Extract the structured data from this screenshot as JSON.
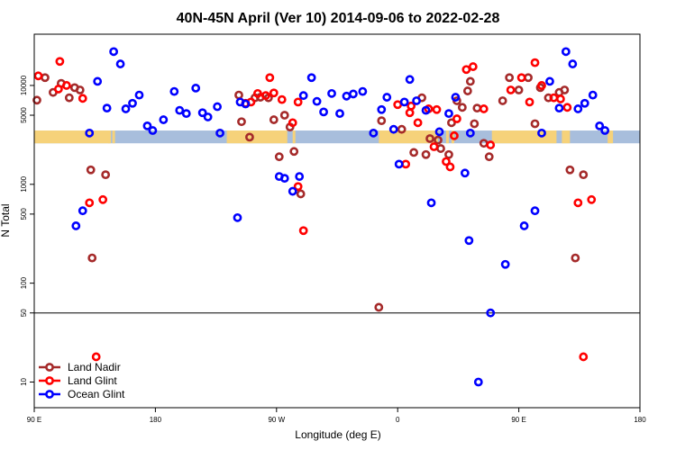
{
  "chart_data": {
    "type": "scatter",
    "title": "40N-45N April (Ver 10)   2014-09-06 to 2022-02-28",
    "xlabel": "Longitude (deg E)",
    "ylabel": "N Total",
    "x_scale": "linear",
    "y_scale": "log",
    "xlim": [
      90,
      540
    ],
    "ylim": [
      5.5,
      33000
    ],
    "x_ticks": [
      {
        "value": 90,
        "label": "90 E"
      },
      {
        "value": 180,
        "label": "180"
      },
      {
        "value": 270,
        "label": "90 W"
      },
      {
        "value": 360,
        "label": "0"
      },
      {
        "value": 450,
        "label": "90 E"
      },
      {
        "value": 540,
        "label": "180"
      }
    ],
    "y_ticks": [
      {
        "value": 10,
        "label": "10"
      },
      {
        "value": 50,
        "label": "50"
      },
      {
        "value": 100,
        "label": "100"
      },
      {
        "value": 500,
        "label": "500"
      },
      {
        "value": 1000,
        "label": "1000"
      },
      {
        "value": 5000,
        "label": "5000"
      },
      {
        "value": 10000,
        "label": "10000"
      }
    ],
    "reference_line": {
      "y": 50,
      "color": "#000000"
    },
    "land_mask_band": {
      "y_range": [
        2600,
        3500
      ],
      "ocean_color": "#a8bedc",
      "land_color": "#f6d27a",
      "land_segments": [
        [
          90,
          146
        ],
        [
          148,
          150
        ],
        [
          145,
          147
        ],
        [
          233,
          278
        ],
        [
          282,
          284
        ],
        [
          346,
          390
        ],
        [
          396,
          398
        ],
        [
          400,
          402
        ],
        [
          430,
          478
        ],
        [
          482,
          488
        ],
        [
          516,
          520
        ]
      ]
    },
    "legend": {
      "position": "bottom-left"
    },
    "series": [
      {
        "name": "Land Nadir",
        "color": "#a52a2a",
        "points": [
          [
            92,
            7100
          ],
          [
            98,
            12000
          ],
          [
            104,
            8500
          ],
          [
            110,
            10500
          ],
          [
            116,
            7500
          ],
          [
            120,
            9500
          ],
          [
            124,
            9000
          ],
          [
            132,
            1400
          ],
          [
            133,
            180
          ],
          [
            143,
            1250
          ],
          [
            242,
            8000
          ],
          [
            244,
            4300
          ],
          [
            250,
            3000
          ],
          [
            254,
            7500
          ],
          [
            258,
            7600
          ],
          [
            264,
            7500
          ],
          [
            268,
            4500
          ],
          [
            272,
            1900
          ],
          [
            276,
            5000
          ],
          [
            280,
            3800
          ],
          [
            283,
            2150
          ],
          [
            288,
            800
          ],
          [
            346,
            57
          ],
          [
            348,
            4400
          ],
          [
            363,
            3600
          ],
          [
            372,
            2100
          ],
          [
            378,
            7500
          ],
          [
            381,
            2000
          ],
          [
            384,
            2900
          ],
          [
            390,
            2800
          ],
          [
            392,
            2300
          ],
          [
            398,
            2000
          ],
          [
            400,
            4200
          ],
          [
            404,
            7000
          ],
          [
            408,
            6000
          ],
          [
            412,
            8800
          ],
          [
            414,
            11000
          ],
          [
            417,
            4100
          ],
          [
            419,
            5900
          ],
          [
            424,
            2600
          ],
          [
            428,
            1900
          ],
          [
            438,
            7000
          ],
          [
            443,
            12000
          ],
          [
            450,
            9000
          ],
          [
            457,
            12000
          ],
          [
            462,
            4100
          ],
          [
            466,
            9500
          ],
          [
            472,
            7500
          ],
          [
            480,
            8500
          ],
          [
            484,
            9000
          ],
          [
            488,
            1400
          ],
          [
            492,
            180
          ],
          [
            498,
            1250
          ]
        ]
      },
      {
        "name": "Land Glint",
        "color": "#ff0000",
        "points": [
          [
            93,
            12500
          ],
          [
            108,
            9200
          ],
          [
            109,
            17500
          ],
          [
            114,
            10000
          ],
          [
            126,
            7400
          ],
          [
            131,
            650
          ],
          [
            136,
            18
          ],
          [
            141,
            700
          ],
          [
            247,
            6600
          ],
          [
            251,
            6800
          ],
          [
            256,
            8300
          ],
          [
            262,
            7900
          ],
          [
            265,
            12000
          ],
          [
            268,
            8400
          ],
          [
            274,
            7200
          ],
          [
            282,
            4200
          ],
          [
            286,
            950
          ],
          [
            290,
            340
          ],
          [
            286,
            6800
          ],
          [
            360,
            6400
          ],
          [
            366,
            1600
          ],
          [
            369,
            5300
          ],
          [
            370,
            6200
          ],
          [
            375,
            4200
          ],
          [
            383,
            5800
          ],
          [
            387,
            2400
          ],
          [
            389,
            5700
          ],
          [
            396,
            1700
          ],
          [
            399,
            1500
          ],
          [
            402,
            3100
          ],
          [
            404,
            4600
          ],
          [
            411,
            14500
          ],
          [
            416,
            15500
          ],
          [
            424,
            5800
          ],
          [
            429,
            2500
          ],
          [
            444,
            9000
          ],
          [
            452,
            12000
          ],
          [
            458,
            6800
          ],
          [
            462,
            17000
          ],
          [
            467,
            10000
          ],
          [
            476,
            7500
          ],
          [
            481,
            7300
          ],
          [
            486,
            6000
          ],
          [
            494,
            650
          ],
          [
            498,
            18
          ],
          [
            504,
            700
          ]
        ]
      },
      {
        "name": "Ocean Glint",
        "color": "#0000ff",
        "points": [
          [
            121,
            380
          ],
          [
            126,
            540
          ],
          [
            131,
            3300
          ],
          [
            137,
            11000
          ],
          [
            144,
            5900
          ],
          [
            149,
            22000
          ],
          [
            154,
            16500
          ],
          [
            158,
            5800
          ],
          [
            163,
            6600
          ],
          [
            168,
            8000
          ],
          [
            174,
            3900
          ],
          [
            178,
            3500
          ],
          [
            186,
            4500
          ],
          [
            194,
            8700
          ],
          [
            198,
            5600
          ],
          [
            203,
            5200
          ],
          [
            210,
            9400
          ],
          [
            215,
            5300
          ],
          [
            219,
            4800
          ],
          [
            226,
            6100
          ],
          [
            228,
            3300
          ],
          [
            241,
            460
          ],
          [
            243,
            6800
          ],
          [
            247,
            6500
          ],
          [
            272,
            1200
          ],
          [
            276,
            1150
          ],
          [
            282,
            850
          ],
          [
            287,
            1200
          ],
          [
            290,
            7900
          ],
          [
            296,
            12000
          ],
          [
            300,
            6900
          ],
          [
            305,
            5400
          ],
          [
            311,
            8300
          ],
          [
            317,
            5200
          ],
          [
            322,
            7800
          ],
          [
            327,
            8200
          ],
          [
            334,
            8700
          ],
          [
            342,
            3300
          ],
          [
            348,
            5700
          ],
          [
            352,
            7600
          ],
          [
            357,
            3600
          ],
          [
            361,
            1600
          ],
          [
            365,
            6800
          ],
          [
            369,
            11500
          ],
          [
            374,
            7000
          ],
          [
            381,
            5600
          ],
          [
            385,
            650
          ],
          [
            391,
            3400
          ],
          [
            398,
            5200
          ],
          [
            403,
            7600
          ],
          [
            410,
            1300
          ],
          [
            413,
            270
          ],
          [
            414,
            3300
          ],
          [
            420,
            10
          ],
          [
            429,
            50
          ],
          [
            440,
            155
          ],
          [
            454,
            380
          ],
          [
            462,
            540
          ],
          [
            467,
            3300
          ],
          [
            473,
            11000
          ],
          [
            480,
            5900
          ],
          [
            485,
            22000
          ],
          [
            490,
            16500
          ],
          [
            494,
            5800
          ],
          [
            499,
            6600
          ],
          [
            505,
            8000
          ],
          [
            510,
            3900
          ],
          [
            514,
            3500
          ]
        ]
      }
    ]
  }
}
